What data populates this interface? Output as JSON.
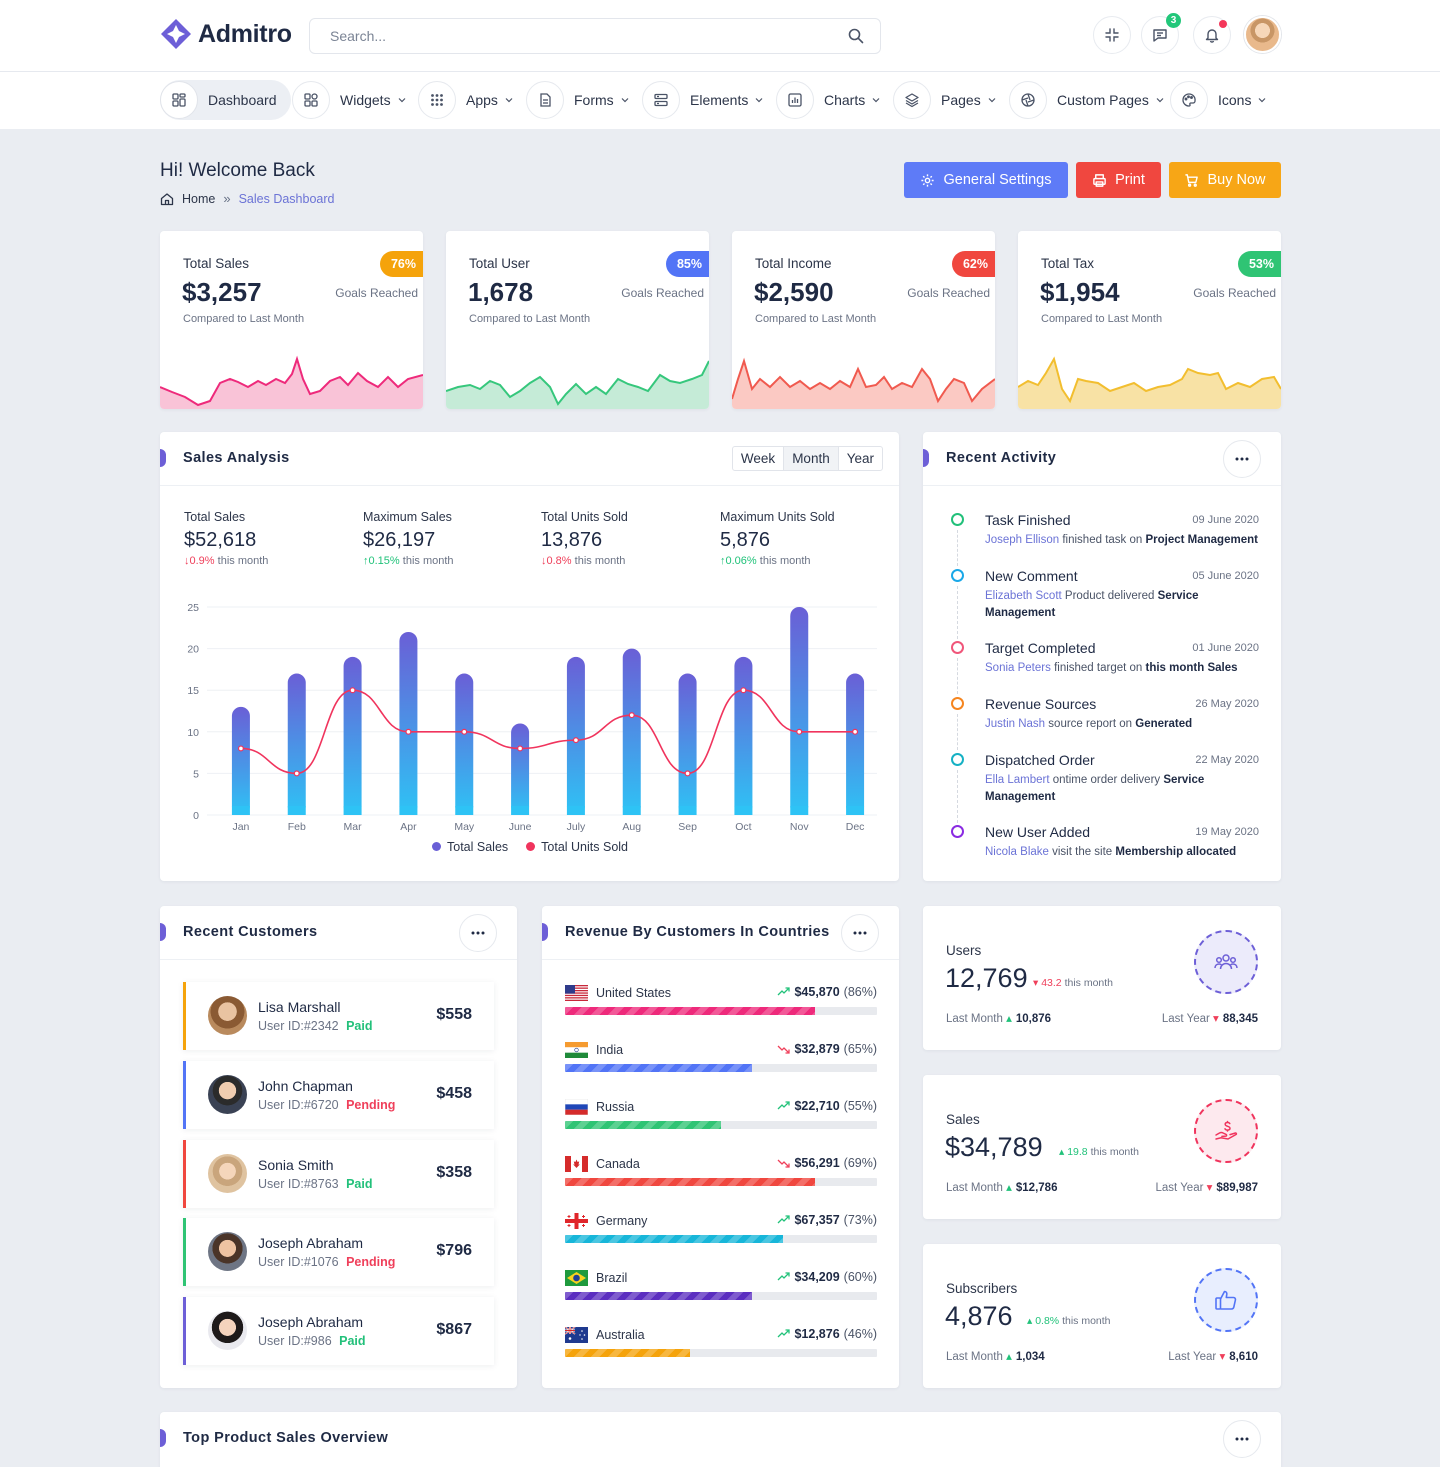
{
  "app": {
    "name": "Admitro",
    "brand_color": "#6d5fd7"
  },
  "search": {
    "placeholder": "Search..."
  },
  "header": {
    "messages_count": "3"
  },
  "nav": [
    {
      "label": "Dashboard",
      "icon": "grid-icon",
      "active": true
    },
    {
      "label": "Widgets",
      "icon": "widgets-icon"
    },
    {
      "label": "Apps",
      "icon": "apps-icon"
    },
    {
      "label": "Forms",
      "icon": "file-icon"
    },
    {
      "label": "Elements",
      "icon": "layers-icon"
    },
    {
      "label": "Charts",
      "icon": "chart-icon"
    },
    {
      "label": "Pages",
      "icon": "stack-icon"
    },
    {
      "label": "Custom Pages",
      "icon": "aperture-icon"
    },
    {
      "label": "Icons",
      "icon": "palette-icon"
    }
  ],
  "page": {
    "title": "Hi! Welcome Back",
    "breadcrumb": {
      "home": "Home",
      "sep": "»",
      "current": "Sales Dashboard"
    },
    "buttons": {
      "settings": "General Settings",
      "print": "Print",
      "buy": "Buy Now"
    }
  },
  "stats": [
    {
      "title": "Total Sales",
      "value": "$3,257",
      "sub": "Compared to Last Month",
      "pct": "76%",
      "goal": "Goals Reached",
      "color": "#f5a30b",
      "line": "#ee2a7b"
    },
    {
      "title": "Total User",
      "value": "1,678",
      "sub": "Compared to Last Month",
      "pct": "85%",
      "goal": "Goals Reached",
      "color": "#5274f6",
      "line": "#36c77c"
    },
    {
      "title": "Total Income",
      "value": "$2,590",
      "sub": "Compared to Last Month",
      "pct": "62%",
      "goal": "Goals Reached",
      "color": "#f0473f",
      "line": "#f05a4f"
    },
    {
      "title": "Total Tax",
      "value": "$1,954",
      "sub": "Compared to Last Month",
      "pct": "53%",
      "goal": "Goals Reached",
      "color": "#2fc474",
      "line": "#f2be2f"
    }
  ],
  "sales_analysis": {
    "title": "Sales Analysis",
    "periods": [
      "Week",
      "Month",
      "Year"
    ],
    "metrics": [
      {
        "label": "Total Sales",
        "value": "$52,618",
        "change": "0.9%",
        "dir": "down",
        "suffix": "this month"
      },
      {
        "label": "Maximum Sales",
        "value": "$26,197",
        "change": "0.15%",
        "dir": "up",
        "suffix": "this month"
      },
      {
        "label": "Total Units Sold",
        "value": "13,876",
        "change": "0.8%",
        "dir": "down",
        "suffix": "this month"
      },
      {
        "label": "Maximum Units Sold",
        "value": "5,876",
        "change": "0.06%",
        "dir": "up",
        "suffix": "this month"
      }
    ]
  },
  "chart_data": {
    "type": "bar",
    "categories": [
      "Jan",
      "Feb",
      "Mar",
      "Apr",
      "May",
      "June",
      "July",
      "Aug",
      "Sep",
      "Oct",
      "Nov",
      "Dec"
    ],
    "series": [
      {
        "name": "Total Sales",
        "type": "bar",
        "values": [
          13,
          17,
          19,
          22,
          17,
          11,
          19,
          20,
          17,
          19,
          25,
          17
        ],
        "color": "#6a5fd6"
      },
      {
        "name": "Total Units Sold",
        "type": "line",
        "values": [
          8,
          5,
          15,
          10,
          10,
          8,
          9,
          12,
          5,
          15,
          10,
          10
        ],
        "color": "#f0345d"
      }
    ],
    "yticks": [
      0,
      5,
      10,
      15,
      20,
      25
    ],
    "ylim": [
      0,
      25
    ],
    "legend": "bottom"
  },
  "activity": {
    "title": "Recent Activity",
    "items": [
      {
        "title": "Task Finished",
        "date": "09 June 2020",
        "person": "Joseph Ellison",
        "text": "finished task on",
        "bold": "Project Management",
        "color": "#22c07a"
      },
      {
        "title": "New Comment",
        "date": "05 June 2020",
        "person": "Elizabeth Scott",
        "text": "Product delivered",
        "bold": "Service Management",
        "color": "#1aa8e8"
      },
      {
        "title": "Target Completed",
        "date": "01 June 2020",
        "person": "Sonia Peters",
        "text": "finished target on",
        "bold": "this month Sales",
        "color": "#f0567a"
      },
      {
        "title": "Revenue Sources",
        "date": "26 May 2020",
        "person": "Justin Nash",
        "text": "source report on",
        "bold": "Generated",
        "color": "#f5851f"
      },
      {
        "title": "Dispatched Order",
        "date": "22 May 2020",
        "person": "Ella Lambert",
        "text": "ontime order delivery",
        "bold": "Service Management",
        "color": "#16b1c4"
      },
      {
        "title": "New User Added",
        "date": "19 May 2020",
        "person": "Nicola Blake",
        "text": "visit the site",
        "bold": "Membership allocated",
        "color": "#8a2be2"
      }
    ]
  },
  "customers": {
    "title": "Recent Customers",
    "items": [
      {
        "name": "Lisa Marshall",
        "uid": "User ID:#2342",
        "status": "Paid",
        "amount": "$558",
        "accent": "#f5a30b"
      },
      {
        "name": "John Chapman",
        "uid": "User ID:#6720",
        "status": "Pending",
        "amount": "$458",
        "accent": "#5274f6"
      },
      {
        "name": "Sonia Smith",
        "uid": "User ID:#8763",
        "status": "Paid",
        "amount": "$358",
        "accent": "#f0473f"
      },
      {
        "name": "Joseph Abraham",
        "uid": "User ID:#1076",
        "status": "Pending",
        "amount": "$796",
        "accent": "#2fc474"
      },
      {
        "name": "Joseph Abraham",
        "uid": "User ID:#986",
        "status": "Paid",
        "amount": "$867",
        "accent": "#6d5fd7"
      }
    ]
  },
  "countries": {
    "title": "Revenue By Customers In Countries",
    "items": [
      {
        "name": "United States",
        "amount": "$45,870",
        "pct": "(86%)",
        "fill": 0.8,
        "trend": "up",
        "color": "#ee2a7b",
        "flag": "us-flag-icon"
      },
      {
        "name": "India",
        "amount": "$32,879",
        "pct": "(65%)",
        "fill": 0.6,
        "trend": "down",
        "color": "#5274f6",
        "flag": "india-flag-icon"
      },
      {
        "name": "Russia",
        "amount": "$22,710",
        "pct": "(55%)",
        "fill": 0.5,
        "trend": "up",
        "color": "#2fc474",
        "flag": "russia-flag-icon"
      },
      {
        "name": "Canada",
        "amount": "$56,291",
        "pct": "(69%)",
        "fill": 0.8,
        "trend": "down",
        "color": "#f0473f",
        "flag": "canada-flag-icon"
      },
      {
        "name": "Germany",
        "amount": "$67,357",
        "pct": "(73%)",
        "fill": 0.7,
        "trend": "up",
        "color": "#17b6d9",
        "flag": "georgia-flag-icon"
      },
      {
        "name": "Brazil",
        "amount": "$34,209",
        "pct": "(60%)",
        "fill": 0.6,
        "trend": "up",
        "color": "#5b2ec0",
        "flag": "brazil-flag-icon"
      },
      {
        "name": "Australia",
        "amount": "$12,876",
        "pct": "(46%)",
        "fill": 0.4,
        "trend": "up",
        "color": "#f5a30b",
        "flag": "australia-flag-icon"
      }
    ]
  },
  "minis": [
    {
      "label": "Users",
      "value": "12,769",
      "change": "43.2",
      "dir": "down",
      "suffix": "this month",
      "lm_label": "Last Month",
      "lm_dir": "up",
      "lm": "10,876",
      "ly_label": "Last Year",
      "ly_dir": "down",
      "ly": "88,345",
      "color": "#6d5fd7",
      "bg": "#ecebfb",
      "icon": "users-icon"
    },
    {
      "label": "Sales",
      "value": "$34,789",
      "change": "19.8",
      "dir": "up",
      "suffix": "this month",
      "lm_label": "Last Month",
      "lm_dir": "up",
      "lm": "$12,786",
      "ly_label": "Last Year",
      "ly_dir": "down",
      "ly": "$89,987",
      "color": "#f0345d",
      "bg": "#fde9ee",
      "icon": "money-hand-icon"
    },
    {
      "label": "Subscribers",
      "value": "4,876",
      "change": "0.8%",
      "dir": "up",
      "suffix": "this month",
      "lm_label": "Last Month",
      "lm_dir": "up",
      "lm": "1,034",
      "ly_label": "Last Year",
      "ly_dir": "down",
      "ly": "8,610",
      "color": "#5274f6",
      "bg": "#e8eefe",
      "icon": "thumbs-up-icon"
    }
  ],
  "bottom": {
    "title": "Top Product Sales Overview"
  }
}
